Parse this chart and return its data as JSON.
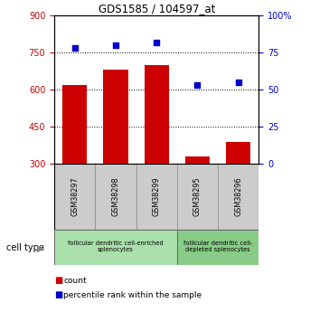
{
  "title": "GDS1585 / 104597_at",
  "samples": [
    "GSM38297",
    "GSM38298",
    "GSM38299",
    "GSM38295",
    "GSM38296"
  ],
  "bar_values": [
    620,
    680,
    700,
    330,
    390
  ],
  "scatter_values": [
    78,
    80,
    82,
    53,
    55
  ],
  "ylim_left": [
    300,
    900
  ],
  "ylim_right": [
    0,
    100
  ],
  "yticks_left": [
    300,
    450,
    600,
    750,
    900
  ],
  "yticks_right": [
    0,
    25,
    50,
    75,
    100
  ],
  "bar_color": "#cc0000",
  "scatter_color": "#0000cc",
  "groups": [
    {
      "label": "follicular dendritic cell-enriched\nsplenocytes",
      "indices": [
        0,
        1,
        2
      ],
      "color": "#aae0aa"
    },
    {
      "label": "follicular dendritic cell-\ndepleted splenocytes",
      "indices": [
        3,
        4
      ],
      "color": "#88cc88"
    }
  ],
  "legend_count_label": "count",
  "legend_pct_label": "percentile rank within the sample",
  "cell_type_label": "cell type",
  "dotted_lines": [
    450,
    600,
    750
  ],
  "bg_color": "#ffffff",
  "tick_label_color_left": "#cc0000",
  "tick_label_color_right": "#0000cc",
  "sample_box_color": "#cccccc",
  "sample_box_edge": "#aaaaaa"
}
